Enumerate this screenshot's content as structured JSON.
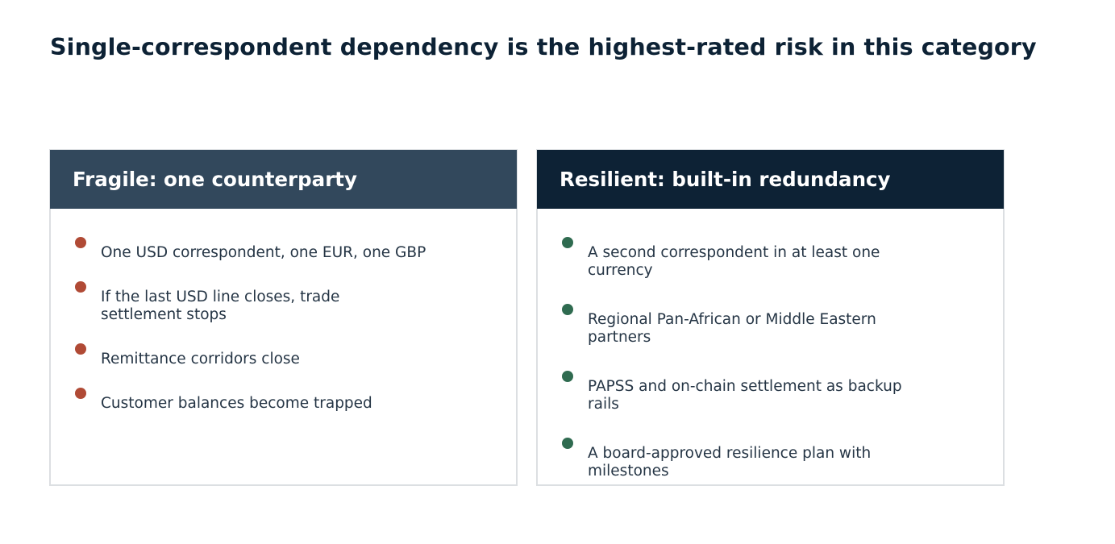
{
  "title": "Single-correspondent dependency is the highest-rated risk in this category",
  "colors": {
    "title": "#0d2235",
    "fragile_header": "#32485c",
    "resilient_header": "#0d2235",
    "fragile_bullet": "#b04a35",
    "resilient_bullet": "#2f6b50",
    "body_text": "#253545"
  },
  "fragile": {
    "heading": "Fragile: one counterparty",
    "items": [
      "One USD correspondent, one EUR, one GBP",
      "If the last USD line closes, trade settlement stops",
      "Remittance corridors close",
      "Customer balances become trapped"
    ]
  },
  "resilient": {
    "heading": "Resilient: built-in redundancy",
    "items": [
      "A second correspondent in at least one currency",
      "Regional Pan-African or Middle Eastern partners",
      "PAPSS and on-chain settlement as backup rails",
      "A board-approved resilience plan with milestones"
    ]
  }
}
